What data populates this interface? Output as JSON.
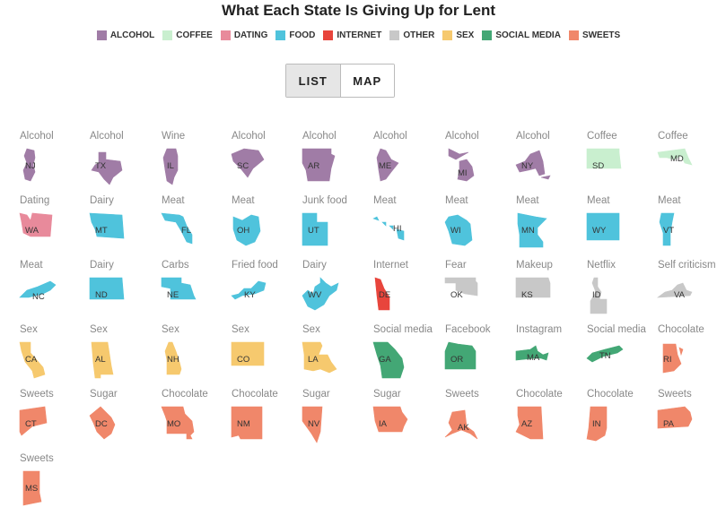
{
  "title": "What Each State Is Giving Up for Lent",
  "toggle": {
    "list_label": "LIST",
    "map_label": "MAP"
  },
  "chart_data": {
    "type": "table",
    "title": "What Each State Is Giving Up for Lent",
    "legend": [
      {
        "key": "alcohol",
        "label": "ALCOHOL",
        "color": "#a07ca6"
      },
      {
        "key": "coffee",
        "label": "COFFEE",
        "color": "#c9efcf"
      },
      {
        "key": "dating",
        "label": "DATING",
        "color": "#e88a9b"
      },
      {
        "key": "food",
        "label": "FOOD",
        "color": "#4fc3dc"
      },
      {
        "key": "internet",
        "label": "INTERNET",
        "color": "#e8453c"
      },
      {
        "key": "other",
        "label": "OTHER",
        "color": "#c8c8c8"
      },
      {
        "key": "sex",
        "label": "SEX",
        "color": "#f6c96e"
      },
      {
        "key": "social",
        "label": "SOCIAL MEDIA",
        "color": "#43a775"
      },
      {
        "key": "sweets",
        "label": "SWEETS",
        "color": "#f0876a"
      }
    ],
    "states": [
      {
        "state": "NJ",
        "item": "Alcohol",
        "category": "alcohol"
      },
      {
        "state": "TX",
        "item": "Alcohol",
        "category": "alcohol"
      },
      {
        "state": "IL",
        "item": "Wine",
        "category": "alcohol"
      },
      {
        "state": "SC",
        "item": "Alcohol",
        "category": "alcohol"
      },
      {
        "state": "AR",
        "item": "Alcohol",
        "category": "alcohol"
      },
      {
        "state": "ME",
        "item": "Alcohol",
        "category": "alcohol"
      },
      {
        "state": "MI",
        "item": "Alcohol",
        "category": "alcohol"
      },
      {
        "state": "NY",
        "item": "Alcohol",
        "category": "alcohol"
      },
      {
        "state": "SD",
        "item": "Coffee",
        "category": "coffee"
      },
      {
        "state": "MD",
        "item": "Coffee",
        "category": "coffee"
      },
      {
        "state": "WA",
        "item": "Dating",
        "category": "dating"
      },
      {
        "state": "MT",
        "item": "Dairy",
        "category": "food"
      },
      {
        "state": "FL",
        "item": "Meat",
        "category": "food"
      },
      {
        "state": "OH",
        "item": "Meat",
        "category": "food"
      },
      {
        "state": "UT",
        "item": "Junk food",
        "category": "food"
      },
      {
        "state": "HI",
        "item": "Meat",
        "category": "food"
      },
      {
        "state": "WI",
        "item": "Meat",
        "category": "food"
      },
      {
        "state": "MN",
        "item": "Meat",
        "category": "food"
      },
      {
        "state": "WY",
        "item": "Meat",
        "category": "food"
      },
      {
        "state": "VT",
        "item": "Meat",
        "category": "food"
      },
      {
        "state": "NC",
        "item": "Meat",
        "category": "food"
      },
      {
        "state": "ND",
        "item": "Dairy",
        "category": "food"
      },
      {
        "state": "NE",
        "item": "Carbs",
        "category": "food"
      },
      {
        "state": "KY",
        "item": "Fried food",
        "category": "food"
      },
      {
        "state": "WV",
        "item": "Dairy",
        "category": "food"
      },
      {
        "state": "DE",
        "item": "Internet",
        "category": "internet"
      },
      {
        "state": "OK",
        "item": "Fear",
        "category": "other"
      },
      {
        "state": "KS",
        "item": "Makeup",
        "category": "other"
      },
      {
        "state": "ID",
        "item": "Netflix",
        "category": "other"
      },
      {
        "state": "VA",
        "item": "Self criticism",
        "category": "other"
      },
      {
        "state": "CA",
        "item": "Sex",
        "category": "sex"
      },
      {
        "state": "AL",
        "item": "Sex",
        "category": "sex"
      },
      {
        "state": "NH",
        "item": "Sex",
        "category": "sex"
      },
      {
        "state": "CO",
        "item": "Sex",
        "category": "sex"
      },
      {
        "state": "LA",
        "item": "Sex",
        "category": "sex"
      },
      {
        "state": "GA",
        "item": "Social media",
        "category": "social"
      },
      {
        "state": "OR",
        "item": "Facebook",
        "category": "social"
      },
      {
        "state": "MA",
        "item": "Instagram",
        "category": "social"
      },
      {
        "state": "TN",
        "item": "Social media",
        "category": "social"
      },
      {
        "state": "RI",
        "item": "Chocolate",
        "category": "sweets"
      },
      {
        "state": "CT",
        "item": "Sweets",
        "category": "sweets"
      },
      {
        "state": "DC",
        "item": "Sugar",
        "category": "sweets"
      },
      {
        "state": "MO",
        "item": "Chocolate",
        "category": "sweets"
      },
      {
        "state": "NM",
        "item": "Chocolate",
        "category": "sweets"
      },
      {
        "state": "NV",
        "item": "Sugar",
        "category": "sweets"
      },
      {
        "state": "IA",
        "item": "Sugar",
        "category": "sweets"
      },
      {
        "state": "AK",
        "item": "Sweets",
        "category": "sweets"
      },
      {
        "state": "AZ",
        "item": "Chocolate",
        "category": "sweets"
      },
      {
        "state": "IN",
        "item": "Chocolate",
        "category": "sweets"
      },
      {
        "state": "PA",
        "item": "Sweets",
        "category": "sweets"
      },
      {
        "state": "MS",
        "item": "Sweets",
        "category": "sweets"
      }
    ]
  }
}
